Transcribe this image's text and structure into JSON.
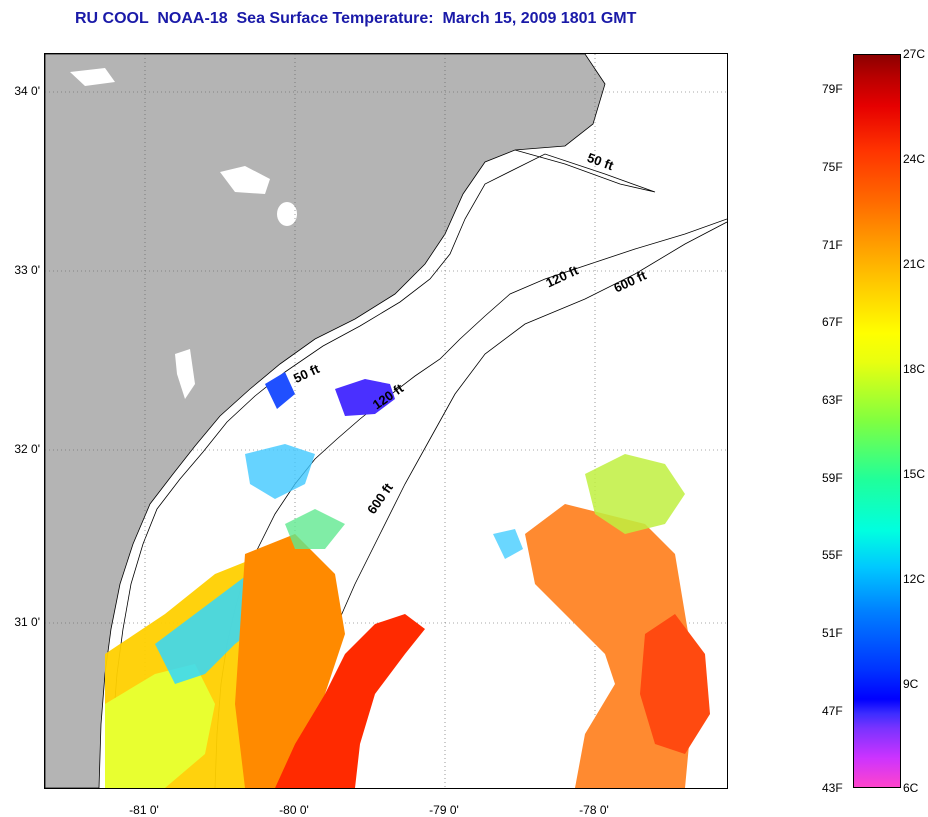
{
  "title": "RU COOL  NOAA-18  Sea Surface Temperature:  March 15, 2009 1801 GMT",
  "axes": {
    "lat_labels": [
      "34 0'",
      "33 0'",
      "32 0'",
      "31 0'"
    ],
    "lon_labels": [
      "-81 0'",
      "-80 0'",
      "-79 0'",
      "-78 0'"
    ]
  },
  "isobaths": {
    "north_50": "50 ft",
    "north_120": "120 ft",
    "north_600": "600 ft",
    "south_50": "50 ft",
    "south_120": "120 ft",
    "south_600": "600 ft"
  },
  "colorbar": {
    "fahrenheit": [
      "79F",
      "75F",
      "71F",
      "67F",
      "63F",
      "59F",
      "55F",
      "51F",
      "47F",
      "43F"
    ],
    "celsius": [
      "27C",
      "24C",
      "21C",
      "18C",
      "15C",
      "12C",
      "9C",
      "6C"
    ]
  },
  "colors": {
    "land": "#b4b4b4",
    "title": "#1a1aa8",
    "cold": "#0000ff",
    "warm": "#ff3300"
  }
}
